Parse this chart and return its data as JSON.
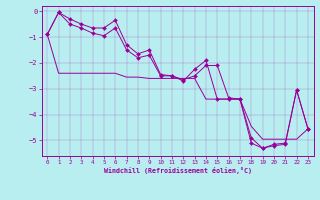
{
  "xlabel": "Windchill (Refroidissement éolien,°C)",
  "bg_color": "#b8eef0",
  "line_color": "#990099",
  "xlim": [
    -0.5,
    23.5
  ],
  "ylim": [
    -5.6,
    0.2
  ],
  "yticks": [
    0,
    -1,
    -2,
    -3,
    -4,
    -5
  ],
  "xticks": [
    0,
    1,
    2,
    3,
    4,
    5,
    6,
    7,
    8,
    9,
    10,
    11,
    12,
    13,
    14,
    15,
    16,
    17,
    18,
    19,
    20,
    21,
    22,
    23
  ],
  "series1": [
    [
      0,
      -0.9
    ],
    [
      1,
      -0.05
    ],
    [
      2,
      -0.3
    ],
    [
      3,
      -0.5
    ],
    [
      4,
      -0.65
    ],
    [
      5,
      -0.65
    ],
    [
      6,
      -0.35
    ],
    [
      7,
      -1.3
    ],
    [
      8,
      -1.65
    ],
    [
      9,
      -1.5
    ],
    [
      10,
      -2.45
    ],
    [
      11,
      -2.5
    ],
    [
      12,
      -2.65
    ],
    [
      13,
      -2.5
    ],
    [
      14,
      -2.1
    ],
    [
      15,
      -2.1
    ],
    [
      16,
      -3.35
    ],
    [
      17,
      -3.4
    ],
    [
      18,
      -4.9
    ],
    [
      19,
      -5.3
    ],
    [
      20,
      -5.2
    ],
    [
      21,
      -5.15
    ],
    [
      22,
      -3.05
    ],
    [
      23,
      -4.55
    ]
  ],
  "series2": [
    [
      0,
      -0.9
    ],
    [
      1,
      -2.4
    ],
    [
      2,
      -2.4
    ],
    [
      3,
      -2.4
    ],
    [
      4,
      -2.4
    ],
    [
      5,
      -2.4
    ],
    [
      6,
      -2.4
    ],
    [
      7,
      -2.55
    ],
    [
      8,
      -2.55
    ],
    [
      9,
      -2.6
    ],
    [
      10,
      -2.6
    ],
    [
      11,
      -2.6
    ],
    [
      12,
      -2.6
    ],
    [
      13,
      -2.6
    ],
    [
      14,
      -3.4
    ],
    [
      15,
      -3.4
    ],
    [
      16,
      -3.4
    ],
    [
      17,
      -3.4
    ],
    [
      18,
      -4.45
    ],
    [
      19,
      -4.95
    ],
    [
      20,
      -4.95
    ],
    [
      21,
      -4.95
    ],
    [
      22,
      -4.95
    ],
    [
      23,
      -4.55
    ]
  ],
  "series3": [
    [
      0,
      -0.9
    ],
    [
      1,
      -0.05
    ],
    [
      2,
      -0.5
    ],
    [
      3,
      -0.65
    ],
    [
      4,
      -0.85
    ],
    [
      5,
      -0.95
    ],
    [
      6,
      -0.65
    ],
    [
      7,
      -1.5
    ],
    [
      8,
      -1.8
    ],
    [
      9,
      -1.7
    ],
    [
      10,
      -2.5
    ],
    [
      11,
      -2.5
    ],
    [
      12,
      -2.7
    ],
    [
      13,
      -2.25
    ],
    [
      14,
      -1.9
    ],
    [
      15,
      -3.4
    ],
    [
      16,
      -3.4
    ],
    [
      17,
      -3.4
    ],
    [
      18,
      -5.1
    ],
    [
      19,
      -5.3
    ],
    [
      20,
      -5.15
    ],
    [
      21,
      -5.1
    ],
    [
      22,
      -3.05
    ],
    [
      23,
      -4.55
    ]
  ]
}
